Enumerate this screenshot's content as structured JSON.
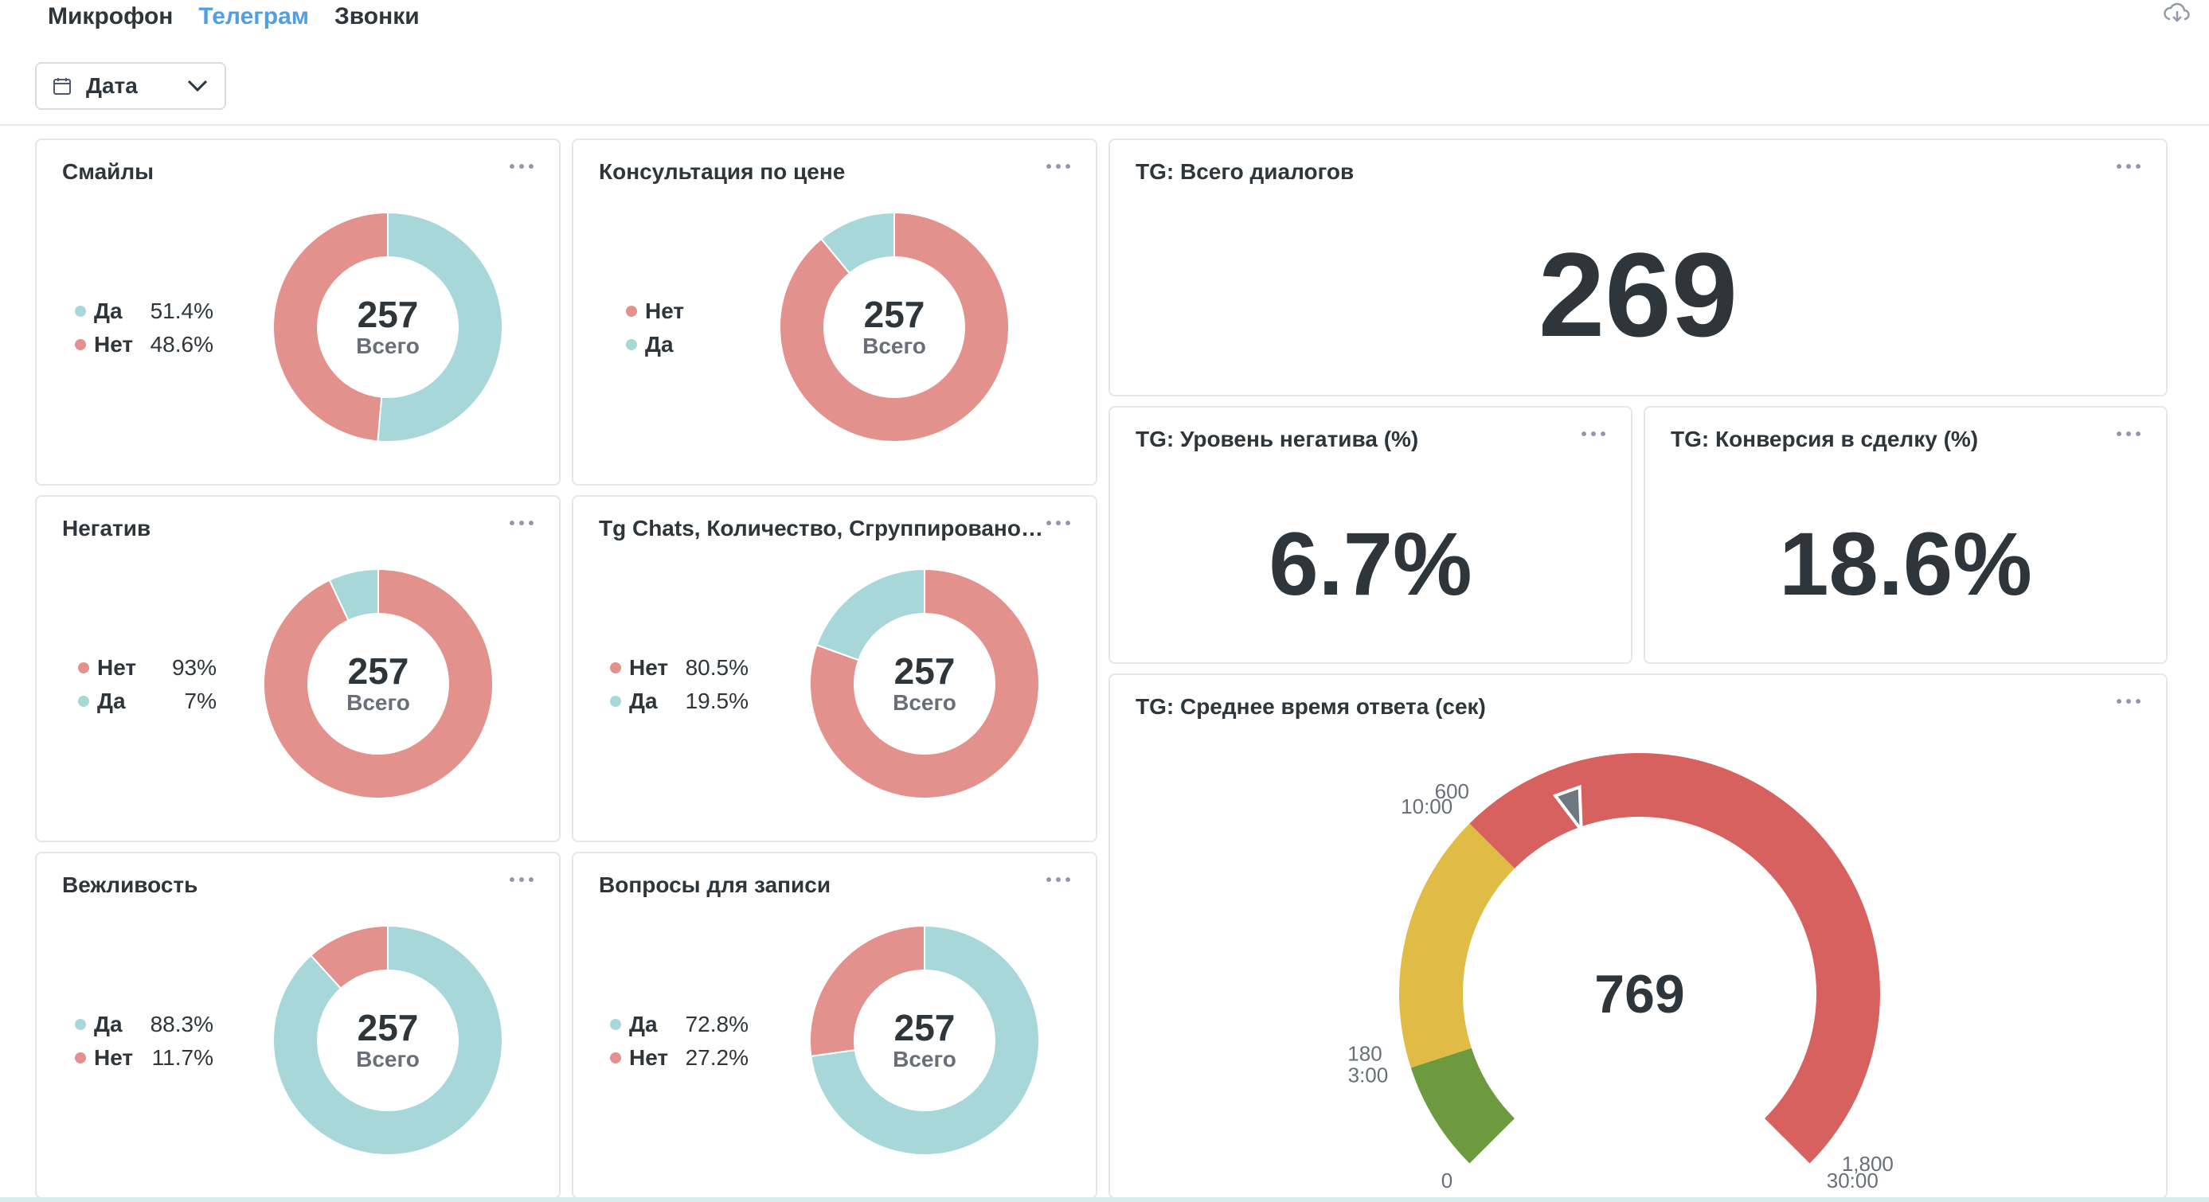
{
  "tabs": [
    {
      "label": "Микрофон",
      "active": false
    },
    {
      "label": "Телеграм",
      "active": true
    },
    {
      "label": "Звонки",
      "active": false
    }
  ],
  "filter": {
    "label": "Дата"
  },
  "colors": {
    "teal": "#a7d7d9",
    "red": "#e3918c",
    "gauge_green": "#6e9a3f",
    "gauge_yellow": "#e0bb45",
    "gauge_red": "#d6615e",
    "text": "#2e353b"
  },
  "charts": [
    {
      "title": "Смайлы",
      "total": "257",
      "caption": "Всего",
      "show_pct": true,
      "segments": [
        {
          "name": "Да",
          "pct": "51.4%",
          "value": 51.4,
          "color": "#a7d7d9"
        },
        {
          "name": "Нет",
          "pct": "48.6%",
          "value": 48.6,
          "color": "#e3918c"
        }
      ]
    },
    {
      "title": "Консультация по цене",
      "total": "257",
      "caption": "Всего",
      "show_pct": false,
      "segments": [
        {
          "name": "Нет",
          "pct": "",
          "value": 89,
          "color": "#e3918c"
        },
        {
          "name": "Да",
          "pct": "",
          "value": 11,
          "color": "#a7d7d9"
        }
      ]
    },
    {
      "title": "Негатив",
      "total": "257",
      "caption": "Всего",
      "show_pct": true,
      "segments": [
        {
          "name": "Нет",
          "pct": "93%",
          "value": 93,
          "color": "#e3918c"
        },
        {
          "name": "Да",
          "pct": "7%",
          "value": 7,
          "color": "#a7d7d9"
        }
      ]
    },
    {
      "title": "Tg Chats, Количество, Сгруппировано по Продажа",
      "total": "257",
      "caption": "Всего",
      "show_pct": true,
      "segments": [
        {
          "name": "Нет",
          "pct": "80.5%",
          "value": 80.5,
          "color": "#e3918c"
        },
        {
          "name": "Да",
          "pct": "19.5%",
          "value": 19.5,
          "color": "#a7d7d9"
        }
      ]
    },
    {
      "title": "Вежливость",
      "total": "257",
      "caption": "Всего",
      "show_pct": true,
      "segments": [
        {
          "name": "Да",
          "pct": "88.3%",
          "value": 88.3,
          "color": "#a7d7d9"
        },
        {
          "name": "Нет",
          "pct": "11.7%",
          "value": 11.7,
          "color": "#e3918c"
        }
      ]
    },
    {
      "title": "Вопросы для записи",
      "total": "257",
      "caption": "Всего",
      "show_pct": true,
      "segments": [
        {
          "name": "Да",
          "pct": "72.8%",
          "value": 72.8,
          "color": "#a7d7d9"
        },
        {
          "name": "Нет",
          "pct": "27.2%",
          "value": 27.2,
          "color": "#e3918c"
        }
      ]
    }
  ],
  "scalars": {
    "total_dialogs": {
      "title": "TG: Всего диалогов",
      "value": "269"
    },
    "negativity": {
      "title": "TG: Уровень негатива (%)",
      "value": "6.7%"
    },
    "conversion": {
      "title": "TG: Конверсия в сделку (%)",
      "value": "18.6%"
    }
  },
  "gauge": {
    "title": "TG: Среднее время ответа (сек)",
    "value": 769,
    "value_label": "769",
    "min": 0,
    "max": 1800,
    "ranges": [
      {
        "from": 0,
        "to": 180,
        "color": "#6e9a3f"
      },
      {
        "from": 180,
        "to": 600,
        "color": "#e0bb45"
      },
      {
        "from": 600,
        "to": 1800,
        "color": "#d6615e"
      }
    ],
    "labels": [
      {
        "value": 0,
        "text": "0"
      },
      {
        "value": 180,
        "text": "3:00"
      },
      {
        "value": 180,
        "text": "180"
      },
      {
        "value": 600,
        "text": "10:00"
      },
      {
        "value": 600,
        "text": "600"
      },
      {
        "value": 1800,
        "text": "30:00"
      },
      {
        "value": 1800,
        "text": "1,800"
      }
    ]
  },
  "chart_data": [
    {
      "type": "pie",
      "title": "Смайлы",
      "categories": [
        "Да",
        "Нет"
      ],
      "values": [
        51.4,
        48.6
      ],
      "total": 257
    },
    {
      "type": "pie",
      "title": "Консультация по цене",
      "categories": [
        "Нет",
        "Да"
      ],
      "values": [
        89,
        11
      ],
      "total": 257
    },
    {
      "type": "pie",
      "title": "Негатив",
      "categories": [
        "Нет",
        "Да"
      ],
      "values": [
        93,
        7
      ],
      "total": 257
    },
    {
      "type": "pie",
      "title": "Tg Chats, Количество, Сгруппировано по Продажа",
      "categories": [
        "Нет",
        "Да"
      ],
      "values": [
        80.5,
        19.5
      ],
      "total": 257
    },
    {
      "type": "pie",
      "title": "Вежливость",
      "categories": [
        "Да",
        "Нет"
      ],
      "values": [
        88.3,
        11.7
      ],
      "total": 257
    },
    {
      "type": "pie",
      "title": "Вопросы для записи",
      "categories": [
        "Да",
        "Нет"
      ],
      "values": [
        72.8,
        27.2
      ],
      "total": 257
    },
    {
      "type": "gauge",
      "title": "TG: Среднее время ответа (сек)",
      "value": 769,
      "min": 0,
      "max": 1800,
      "ranges": [
        [
          0,
          180
        ],
        [
          180,
          600
        ],
        [
          600,
          1800
        ]
      ]
    }
  ]
}
